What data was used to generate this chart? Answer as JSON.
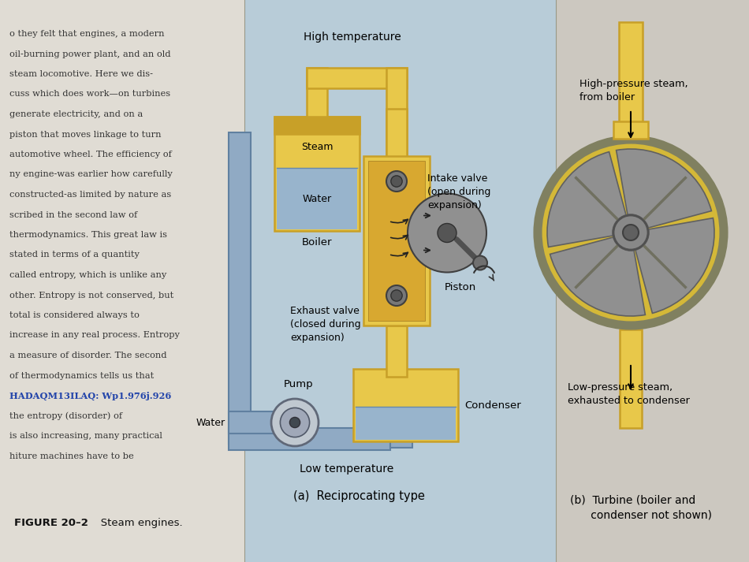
{
  "bg_color": "#ccc8c0",
  "left_panel_color": "#e0dcd4",
  "center_panel_color": "#b8ccd8",
  "right_panel_color": "#ccc8c0",
  "yellow_fill": "#e8c84a",
  "yellow_dark": "#c8a028",
  "yellow_rim": "#d4aa30",
  "blue_water": "#98b4cc",
  "blue_pipe": "#90aac4",
  "gray_metal": "#909090",
  "gray_dark": "#606060",
  "figure_label": "FIGURE 20–2",
  "figure_caption": "   Steam engines.",
  "caption_a": "(a)  Reciprocating type",
  "caption_b": "(b)  Turbine (boiler and\n      condenser not shown)",
  "label_high_temp": "High temperature",
  "label_low_temp": "Low temperature",
  "label_steam": "Steam",
  "label_water_boiler": "Water",
  "label_boiler": "Boiler",
  "label_intake": "Intake valve\n(open during\nexpansion)",
  "label_exhaust": "Exhaust valve\n(closed during\nexpansion)",
  "label_piston": "Piston",
  "label_pump": "Pump",
  "label_water_pump": "Water",
  "label_condenser": "Condenser",
  "label_high_pressure": "High-pressure steam,\nfrom boiler",
  "label_low_pressure": "Low-pressure steam,\nexhausted to condenser",
  "left_lines": [
    [
      "o they felt that engines, a modern",
      false
    ],
    [
      "oil-burning power plant, and an old",
      false
    ],
    [
      "steam locomotive. Here we dis-",
      false
    ],
    [
      "cuss which does work—on turbines",
      false
    ],
    [
      "generate electricity, and on a",
      false
    ],
    [
      "piston that moves linkage to turn",
      false
    ],
    [
      "automotive wheel. The efficiency of",
      false
    ],
    [
      "ny engine-was earlier how carefully",
      false
    ],
    [
      "constructed-as limited by nature as",
      false
    ],
    [
      "scribed in the second law of",
      false
    ],
    [
      "thermodynamics. This great law is",
      false
    ],
    [
      "stated in terms of a quantity",
      false
    ],
    [
      "called entropy, which is unlike any",
      false
    ],
    [
      "other. Entropy is not conserved, but",
      false
    ],
    [
      "total is considered always to",
      false
    ],
    [
      "increase in any real process. Entropy",
      false
    ],
    [
      "a measure of disorder. The second",
      false
    ],
    [
      "of thermodynamics tells us that",
      false
    ],
    [
      "HADAQM13ILAQ: Wp1.976j.926",
      true
    ],
    [
      "the entropy (disorder) of",
      false
    ],
    [
      "is also increasing, many practical",
      false
    ],
    [
      "hiture machines have to be",
      false
    ]
  ]
}
